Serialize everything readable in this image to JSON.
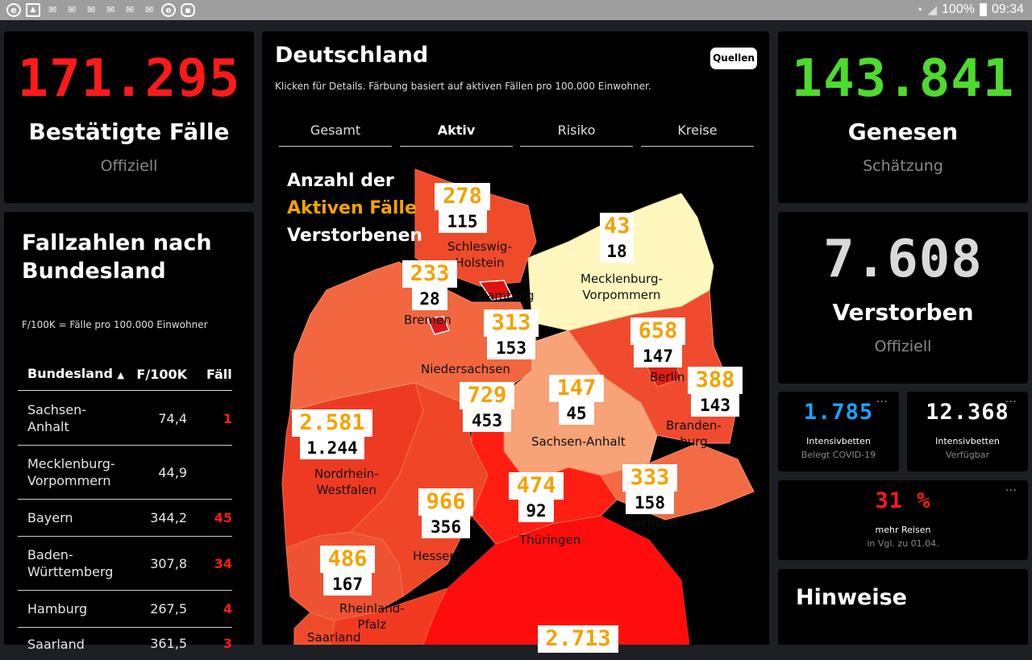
{
  "statusbar": {
    "battery": "100%",
    "time": "09:34",
    "icons": [
      "e-icon",
      "image-icon",
      "mail-icon",
      "mail-icon",
      "mail-icon",
      "mail-icon",
      "mail-icon",
      "mail-icon",
      "e-icon",
      "tv-icon"
    ]
  },
  "confirmed": {
    "value": "171.295",
    "title": "Bestätigte Fälle",
    "sub": "Offiziell",
    "color": "#ff1a1a"
  },
  "recovered": {
    "value": "143.841",
    "title": "Genesen",
    "sub": "Schätzung",
    "color": "#4ddb2d"
  },
  "deaths": {
    "value": "7.608",
    "title": "Verstorben",
    "sub": "Offiziell",
    "color": "#d9d9d9"
  },
  "icu_covid": {
    "value": "1.785",
    "label1": "Intensivbetten",
    "label2": "Belegt COVID-19",
    "color": "#1aa3ff",
    "menu": "..."
  },
  "icu_free": {
    "value": "12.368",
    "label1": "Intensivbetten",
    "label2": "Verfügbar",
    "color": "#ffffff",
    "menu": "..."
  },
  "travel": {
    "value": "31 %",
    "label1": "mehr Reisen",
    "label2": "in Vgl. zu 01.04.",
    "color": "#ff1a1a",
    "menu": "..."
  },
  "hinweise": {
    "title": "Hinweise"
  },
  "states_table": {
    "title": "Fallzahlen nach Bundesland",
    "note": "F/100K = Fälle pro 100.000 Einwohner",
    "headers": [
      "Bundesland",
      "F/100K",
      "Fälle"
    ],
    "rows": [
      {
        "name": "Sachsen-Anhalt",
        "f100k": "74,4",
        "cases": "1"
      },
      {
        "name": "Mecklenburg-Vorpommern",
        "f100k": "44,9",
        "cases": ""
      },
      {
        "name": "Bayern",
        "f100k": "344,2",
        "cases": "45"
      },
      {
        "name": "Baden-Württemberg",
        "f100k": "307,8",
        "cases": "34"
      },
      {
        "name": "Hamburg",
        "f100k": "267,5",
        "cases": "4"
      },
      {
        "name": "Saarland",
        "f100k": "361,5",
        "cases": "3"
      }
    ]
  },
  "map_panel": {
    "title": "Deutschland",
    "subtitle": "Klicken für Details. Färbung basiert auf aktiven Fällen pro 100.000 Einwohner.",
    "sources_button": "Quellen",
    "tabs": [
      "Gesamt",
      "Aktiv",
      "Risiko",
      "Kreise"
    ],
    "active_tab": "Aktiv",
    "legend": {
      "line1": "Anzahl der",
      "line2": "Aktiven Fälle",
      "line3": "Verstorbenen"
    },
    "regions": [
      {
        "name": "Schleswig-Holstein",
        "active": "278",
        "deaths": "115"
      },
      {
        "name": "Mecklenburg-Vorpommern",
        "active": "43",
        "deaths": "18"
      },
      {
        "name": "Hamburg",
        "active": "233",
        "deaths": "28"
      },
      {
        "name": "Bremen",
        "active": "",
        "deaths": ""
      },
      {
        "name": "Niedersachsen",
        "active": "313",
        "deaths": "153"
      },
      {
        "name": "Berlin",
        "active": "658",
        "deaths": "147"
      },
      {
        "name": "Brandenburg",
        "active": "388",
        "deaths": "143"
      },
      {
        "name": "Sachsen-Anhalt",
        "active": "147",
        "deaths": "45"
      },
      {
        "name": "Nordrhein-Westfalen",
        "active": "2.581",
        "deaths": "1.244"
      },
      {
        "name": "Hessen",
        "active": "966",
        "deaths": "356"
      },
      {
        "name": "Niedersachsen-2",
        "active": "729",
        "deaths": "453"
      },
      {
        "name": "Thüringen",
        "active": "474",
        "deaths": "92"
      },
      {
        "name": "Sachsen",
        "active": "333",
        "deaths": "158"
      },
      {
        "name": "Rheinland-Pfalz",
        "active": "486",
        "deaths": "167"
      },
      {
        "name": "Bayern",
        "active": "2.713",
        "deaths": ""
      }
    ],
    "labels": {
      "sh": "Schleswig-\nHolstein",
      "mv": "Mecklenburg-\nVorpommern",
      "hh": "Hamburg",
      "hb": "Bremen",
      "ni": "Niedersachsen",
      "be": "Berlin",
      "bb": "Branden-\nburg",
      "st": "Sachsen-Anhalt",
      "nw": "Nordrhein-\nWestfalen",
      "he": "Hessen",
      "th": "Thüringen",
      "sn": "Sachsen",
      "rp": "Rheinland-\nPfalz",
      "sl": "Saarland"
    }
  }
}
